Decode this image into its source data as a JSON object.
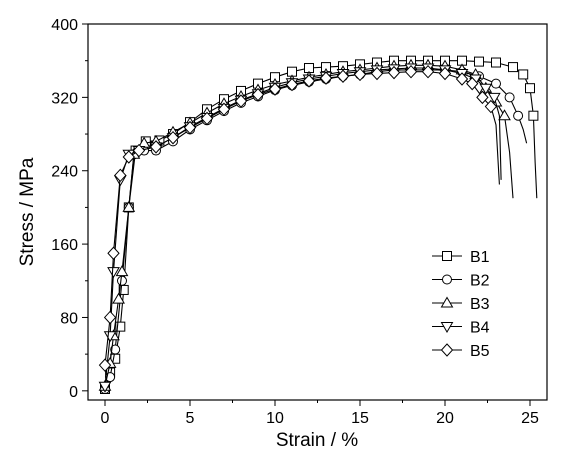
{
  "chart_data": {
    "type": "line",
    "title": "",
    "xlabel": "Strain / %",
    "ylabel": "Stress / MPa",
    "xlim": [
      -1,
      26
    ],
    "ylim": [
      -10,
      400
    ],
    "xticks": [
      0,
      5,
      10,
      15,
      20,
      25
    ],
    "yticks": [
      0,
      80,
      160,
      240,
      320,
      400
    ],
    "grid": false,
    "legend_position": "center-right",
    "series": [
      {
        "name": "B1",
        "marker": "square",
        "points": [
          [
            0,
            2
          ],
          [
            0.3,
            20
          ],
          [
            0.6,
            35
          ],
          [
            0.9,
            70
          ],
          [
            1.1,
            110
          ],
          [
            1.4,
            200
          ],
          [
            1.8,
            262
          ],
          [
            2.4,
            272
          ],
          [
            3.2,
            273
          ],
          [
            4,
            280
          ],
          [
            5,
            293
          ],
          [
            6,
            307
          ],
          [
            7,
            318
          ],
          [
            8,
            327
          ],
          [
            9,
            335
          ],
          [
            10,
            342
          ],
          [
            11,
            348
          ],
          [
            12,
            352
          ],
          [
            13,
            353
          ],
          [
            14,
            354
          ],
          [
            15,
            356
          ],
          [
            16,
            358
          ],
          [
            17,
            360
          ],
          [
            18,
            360
          ],
          [
            19,
            360
          ],
          [
            20,
            360
          ],
          [
            21,
            360
          ],
          [
            22,
            359
          ],
          [
            23,
            358
          ],
          [
            24,
            353
          ],
          [
            24.6,
            345
          ],
          [
            25,
            330
          ],
          [
            25.2,
            300
          ],
          [
            25.3,
            250
          ],
          [
            25.4,
            210
          ]
        ]
      },
      {
        "name": "B2",
        "marker": "circle",
        "points": [
          [
            0,
            2
          ],
          [
            0.3,
            15
          ],
          [
            0.6,
            45
          ],
          [
            1.0,
            120
          ],
          [
            1.4,
            200
          ],
          [
            1.7,
            258
          ],
          [
            2.3,
            262
          ],
          [
            3,
            262
          ],
          [
            4,
            272
          ],
          [
            5,
            285
          ],
          [
            6,
            295
          ],
          [
            7,
            305
          ],
          [
            8,
            314
          ],
          [
            9,
            321
          ],
          [
            10,
            328
          ],
          [
            11,
            333
          ],
          [
            12,
            337
          ],
          [
            13,
            340
          ],
          [
            14,
            343
          ],
          [
            15,
            345
          ],
          [
            16,
            348
          ],
          [
            17,
            350
          ],
          [
            18,
            350
          ],
          [
            19,
            350
          ],
          [
            20,
            350
          ],
          [
            21,
            348
          ],
          [
            22,
            343
          ],
          [
            23,
            335
          ],
          [
            23.8,
            320
          ],
          [
            24.3,
            300
          ],
          [
            24.6,
            285
          ],
          [
            24.8,
            270
          ]
        ]
      },
      {
        "name": "B3",
        "marker": "triangle-up",
        "points": [
          [
            0,
            5
          ],
          [
            0.3,
            30
          ],
          [
            0.5,
            60
          ],
          [
            0.8,
            100
          ],
          [
            1.0,
            130
          ],
          [
            1.4,
            200
          ],
          [
            1.7,
            258
          ],
          [
            2.3,
            270
          ],
          [
            3,
            272
          ],
          [
            4,
            282
          ],
          [
            5,
            292
          ],
          [
            6,
            303
          ],
          [
            7,
            313
          ],
          [
            8,
            321
          ],
          [
            9,
            328
          ],
          [
            10,
            334
          ],
          [
            11,
            338
          ],
          [
            12,
            342
          ],
          [
            13,
            345
          ],
          [
            14,
            348
          ],
          [
            15,
            350
          ],
          [
            16,
            352
          ],
          [
            17,
            354
          ],
          [
            18,
            355
          ],
          [
            19,
            355
          ],
          [
            20,
            354
          ],
          [
            21,
            350
          ],
          [
            21.8,
            345
          ],
          [
            22.4,
            330
          ],
          [
            23.0,
            315
          ],
          [
            23.5,
            300
          ],
          [
            23.8,
            260
          ],
          [
            24,
            210
          ]
        ]
      },
      {
        "name": "B4",
        "marker": "triangle-down",
        "points": [
          [
            0,
            5
          ],
          [
            0.3,
            60
          ],
          [
            0.5,
            130
          ],
          [
            0.9,
            230
          ],
          [
            1.4,
            258
          ],
          [
            2,
            262
          ],
          [
            3,
            266
          ],
          [
            4,
            276
          ],
          [
            5,
            288
          ],
          [
            6,
            298
          ],
          [
            7,
            308
          ],
          [
            8,
            317
          ],
          [
            9,
            324
          ],
          [
            10,
            331
          ],
          [
            11,
            336
          ],
          [
            12,
            340
          ],
          [
            13,
            343
          ],
          [
            14,
            346
          ],
          [
            15,
            348
          ],
          [
            16,
            350
          ],
          [
            17,
            351
          ],
          [
            18,
            352
          ],
          [
            19,
            352
          ],
          [
            20,
            350
          ],
          [
            21,
            346
          ],
          [
            21.8,
            340
          ],
          [
            22.4,
            330
          ],
          [
            22.9,
            320
          ],
          [
            23.2,
            300
          ],
          [
            23.3,
            230
          ]
        ]
      },
      {
        "name": "B5",
        "marker": "diamond",
        "points": [
          [
            0,
            28
          ],
          [
            0.3,
            80
          ],
          [
            0.5,
            150
          ],
          [
            0.9,
            235
          ],
          [
            1.4,
            255
          ],
          [
            2,
            262
          ],
          [
            3,
            266
          ],
          [
            4,
            276
          ],
          [
            5,
            287
          ],
          [
            6,
            297
          ],
          [
            7,
            307
          ],
          [
            8,
            316
          ],
          [
            9,
            323
          ],
          [
            10,
            329
          ],
          [
            11,
            334
          ],
          [
            12,
            338
          ],
          [
            13,
            341
          ],
          [
            14,
            343
          ],
          [
            15,
            345
          ],
          [
            16,
            346
          ],
          [
            17,
            347
          ],
          [
            18,
            348
          ],
          [
            19,
            348
          ],
          [
            20,
            346
          ],
          [
            21,
            340
          ],
          [
            21.6,
            335
          ],
          [
            22.2,
            320
          ],
          [
            22.7,
            310
          ],
          [
            23.0,
            290
          ],
          [
            23.2,
            225
          ]
        ]
      }
    ]
  }
}
